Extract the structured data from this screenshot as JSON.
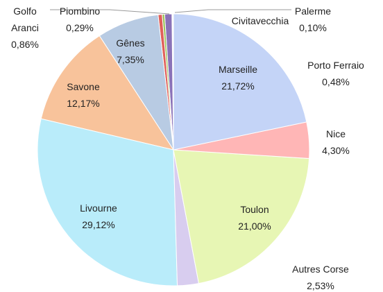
{
  "chart_data": {
    "type": "pie",
    "categories": [
      "Marseille",
      "Nice",
      "Toulon",
      "Autres Corse",
      "Livourne",
      "Savone",
      "Gênes",
      "Porto Ferraio",
      "Piombino",
      "Golfo Aranci",
      "Civitavecchia",
      "Palerme"
    ],
    "values": [
      21.72,
      4.3,
      21.0,
      2.53,
      29.12,
      12.17,
      7.35,
      0.48,
      0.29,
      0.86,
      0.08,
      0.1
    ],
    "value_labels": [
      "21,72%",
      "4,30%",
      "21,00%",
      "2,53%",
      "29,12%",
      "12,17%",
      "7,35%",
      "0,48%",
      "0,29%",
      "0,86%",
      null,
      "0,10%"
    ],
    "colors": [
      "#c4d4f7",
      "#ffb6b6",
      "#e7f6b4",
      "#d8cdef",
      "#b9ecfa",
      "#f8c39b",
      "#b8cbe3",
      "#e0605a",
      "#9cc45a",
      "#8a72b8",
      "#6aa6c8",
      "#c0c0c0"
    ]
  }
}
